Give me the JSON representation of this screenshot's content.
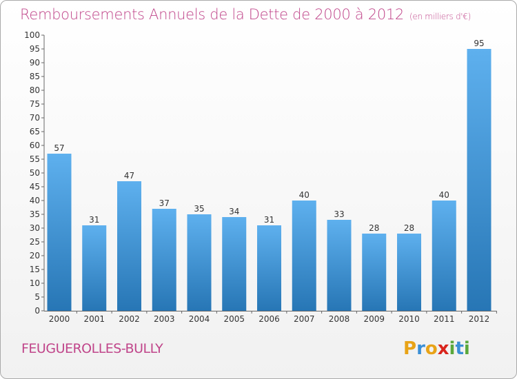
{
  "title": "Remboursements Annuels de la Dette de 2000 à 2012",
  "unit": "(en milliers d'€)",
  "town": "FEUGUEROLLES-BULLY",
  "logo": {
    "text": "Proxiti",
    "letters": [
      {
        "ch": "P",
        "color": "#e8a317"
      },
      {
        "ch": "r",
        "color": "#3a8fd6"
      },
      {
        "ch": "o",
        "color": "#e8a317"
      },
      {
        "ch": "x",
        "color": "#d9241c"
      },
      {
        "ch": "i",
        "color": "#5aa83c"
      },
      {
        "ch": "t",
        "color": "#3a8fd6"
      },
      {
        "ch": "i",
        "color": "#5aa83c"
      }
    ]
  },
  "colors": {
    "bar_top": "#5eb0ee",
    "bar_bottom": "#2776b5",
    "title": "#c0458a"
  },
  "chart_data": {
    "type": "bar",
    "categories": [
      "2000",
      "2001",
      "2002",
      "2003",
      "2004",
      "2005",
      "2006",
      "2007",
      "2008",
      "2009",
      "2010",
      "2011",
      "2012"
    ],
    "values": [
      57,
      31,
      47,
      37,
      35,
      34,
      31,
      40,
      33,
      28,
      28,
      40,
      95
    ],
    "ylim": [
      0,
      100
    ],
    "ytick_step": 5,
    "grid": false,
    "data_labels": true
  }
}
